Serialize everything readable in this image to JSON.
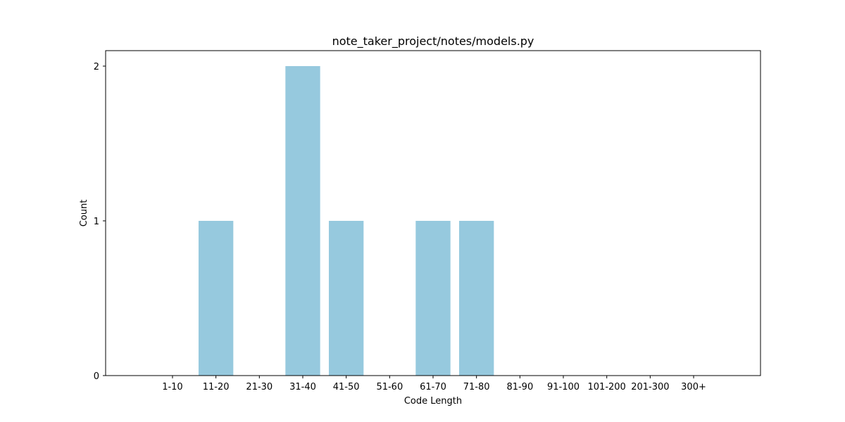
{
  "chart_data": {
    "type": "bar",
    "title": "note_taker_project/notes/models.py",
    "xlabel": "Code Length",
    "ylabel": "Count",
    "categories": [
      "1-10",
      "11-20",
      "21-30",
      "31-40",
      "41-50",
      "51-60",
      "61-70",
      "71-80",
      "81-90",
      "91-100",
      "101-200",
      "201-300",
      "300+"
    ],
    "values": [
      0,
      1,
      0,
      2,
      1,
      0,
      1,
      1,
      0,
      0,
      0,
      0,
      0
    ],
    "ylim": [
      0,
      2.1
    ],
    "yticks": [
      0,
      1,
      2
    ],
    "grid": false,
    "bar_color": "#96c9de"
  }
}
